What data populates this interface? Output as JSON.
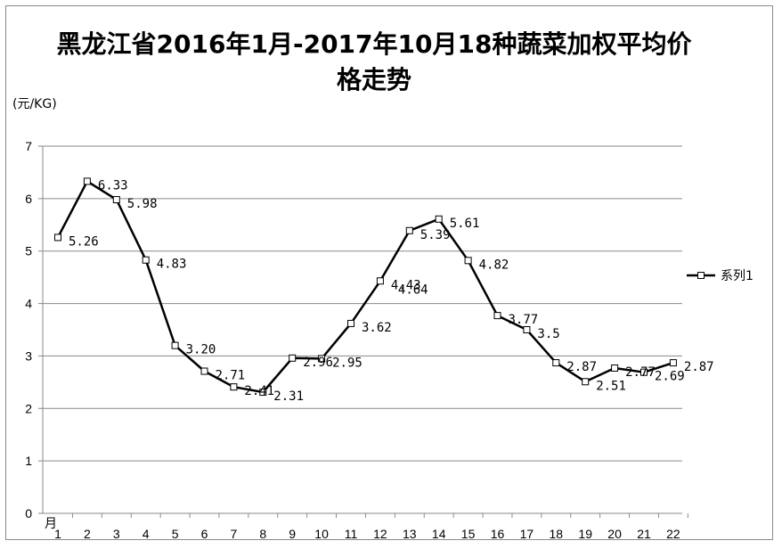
{
  "chart_data": {
    "type": "line",
    "title": "黑龙江省2016年1月-2017年10月18种蔬菜加权平均价格走势",
    "ylabel": "(元/KG)",
    "xlabel": "月",
    "ylim": [
      0,
      7
    ],
    "yticks": [
      0,
      1,
      2,
      3,
      4,
      5,
      6,
      7
    ],
    "grid": true,
    "legend": "right",
    "line_color": "#000000",
    "x": [
      1,
      2,
      3,
      4,
      5,
      6,
      7,
      8,
      9,
      10,
      11,
      12,
      13,
      14,
      15,
      16,
      17,
      18,
      19,
      20,
      21,
      22
    ],
    "series": [
      {
        "name": "系列1",
        "values": [
          5.26,
          6.33,
          5.98,
          4.83,
          3.2,
          2.71,
          2.41,
          2.31,
          2.96,
          2.95,
          3.62,
          4.43,
          5.39,
          5.61,
          4.82,
          3.77,
          3.5,
          2.87,
          2.51,
          2.77,
          2.69,
          2.87
        ],
        "labels": [
          "5.26",
          "6.33",
          "5.98",
          "4.83",
          "3.20",
          "2.71",
          "2.41",
          "2.31",
          "2.96",
          "2.95",
          "3.62",
          "4.43",
          "5.39",
          "5.61",
          "4.82",
          "3.77",
          "3.5",
          "2.87",
          "2.51",
          "2.77",
          "2.69",
          "2.87"
        ]
      }
    ],
    "extra_annotations": [
      "4.64"
    ]
  }
}
